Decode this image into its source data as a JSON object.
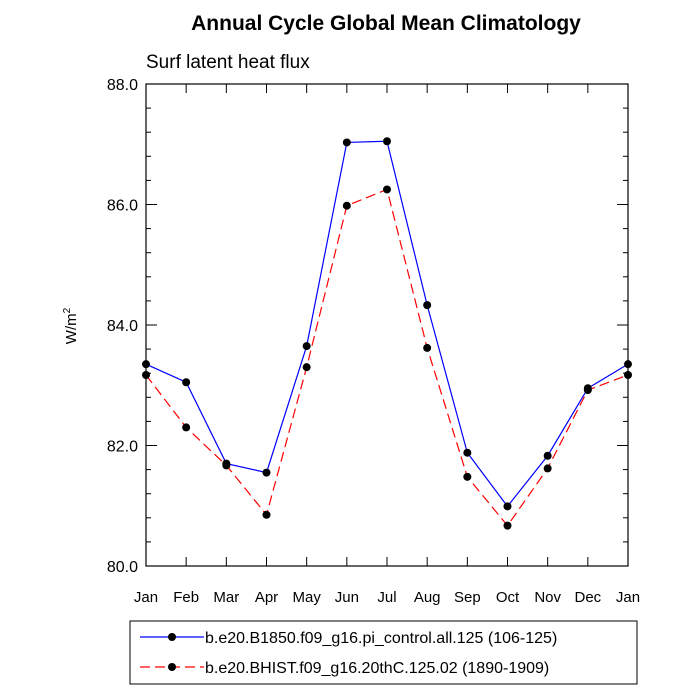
{
  "chart_data": {
    "type": "line",
    "title": "Annual Cycle Global Mean Climatology",
    "subtitle": "Surf latent heat flux",
    "ylabel": "W/m",
    "ylabel_sup": "2",
    "categories": [
      "Jan",
      "Feb",
      "Mar",
      "Apr",
      "May",
      "Jun",
      "Jul",
      "Aug",
      "Sep",
      "Oct",
      "Nov",
      "Dec",
      "Jan"
    ],
    "ylim": [
      80.0,
      88.0
    ],
    "yticks": [
      80.0,
      82.0,
      84.0,
      86.0,
      88.0
    ],
    "ytick_labels": [
      "80.0",
      "82.0",
      "84.0",
      "86.0",
      "88.0"
    ],
    "grid": false,
    "legend_position": "bottom",
    "series": [
      {
        "name": "b.e20.B1850.f09_g16.pi_control.all.125 (106-125)",
        "color": "#0000ff",
        "dash": "solid",
        "values": [
          83.35,
          83.05,
          81.7,
          81.55,
          83.65,
          87.03,
          87.05,
          84.33,
          81.88,
          80.99,
          81.83,
          82.95,
          83.35
        ]
      },
      {
        "name": "b.e20.BHIST.f09_g16.20thC.125.02 (1890-1909)",
        "color": "#ff0000",
        "dash": "dashed",
        "values": [
          83.17,
          82.3,
          81.67,
          80.85,
          83.3,
          85.98,
          86.25,
          83.62,
          81.48,
          80.67,
          81.62,
          82.92,
          83.17
        ]
      }
    ]
  }
}
